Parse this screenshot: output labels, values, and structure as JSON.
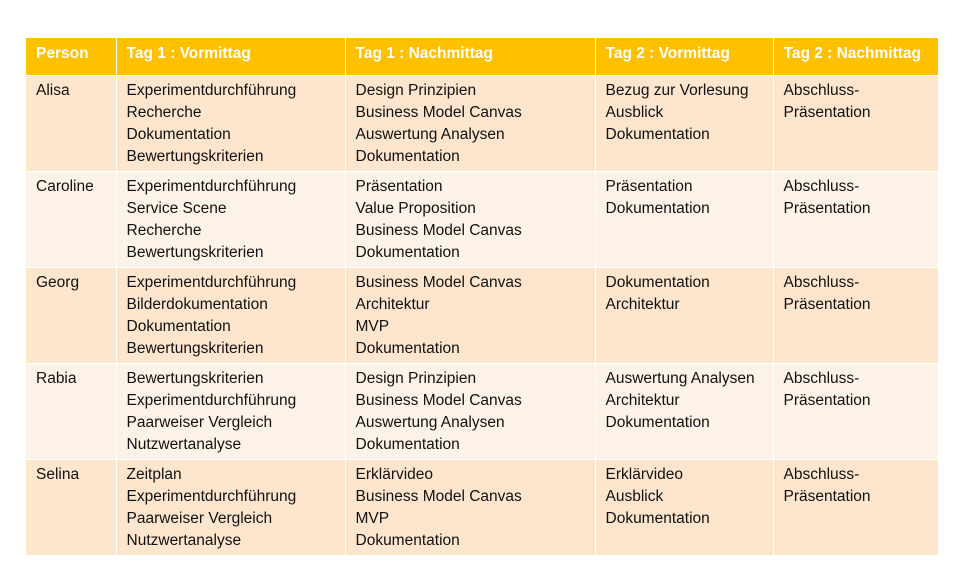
{
  "table": {
    "headers": [
      "Person",
      "Tag 1 : Vormittag",
      "Tag 1 : Nachmittag",
      "Tag 2 : Vormittag",
      "Tag 2 : Nachmittag"
    ],
    "rows": [
      {
        "person": "Alisa",
        "tag1_vormittag": [
          "Experimentdurchführung",
          "Recherche",
          "Dokumentation",
          "Bewertungskriterien"
        ],
        "tag1_nachmittag": [
          "Design Prinzipien",
          "Business Model Canvas",
          "Auswertung Analysen",
          "Dokumentation"
        ],
        "tag2_vormittag": [
          "Bezug zur Vorlesung",
          "Ausblick",
          "Dokumentation"
        ],
        "tag2_nachmittag": "Abschluss-\nPräsentation"
      },
      {
        "person": "Caroline",
        "tag1_vormittag": [
          "Experimentdurchführung",
          "Service Scene",
          "Recherche",
          "Bewertungskriterien"
        ],
        "tag1_nachmittag": [
          "Präsentation",
          "Value Proposition",
          "Business Model Canvas",
          "Dokumentation"
        ],
        "tag2_vormittag": [
          "Präsentation",
          "Dokumentation"
        ],
        "tag2_nachmittag": "Abschluss-\nPräsentation"
      },
      {
        "person": "Georg",
        "tag1_vormittag": [
          "Experimentdurchführung",
          "Bilderdokumentation",
          "Dokumentation",
          "Bewertungskriterien"
        ],
        "tag1_nachmittag": [
          "Business Model Canvas",
          "Architektur",
          "MVP",
          "Dokumentation"
        ],
        "tag2_vormittag": [
          "Dokumentation",
          "Architektur"
        ],
        "tag2_nachmittag": "Abschluss-\nPräsentation"
      },
      {
        "person": "Rabia",
        "tag1_vormittag": [
          "Bewertungskriterien",
          "Experimentdurchführung",
          "Paarweiser Vergleich",
          "Nutzwertanalyse"
        ],
        "tag1_nachmittag": [
          "Design Prinzipien",
          "Business Model Canvas",
          "Auswertung Analysen",
          "Dokumentation"
        ],
        "tag2_vormittag": [
          "Auswertung Analysen",
          "Architektur",
          "Dokumentation"
        ],
        "tag2_nachmittag": "Abschluss-\nPräsentation"
      },
      {
        "person": "Selina",
        "tag1_vormittag": [
          "Zeitplan",
          "Experimentdurchführung",
          "Paarweiser Vergleich",
          "Nutzwertanalyse"
        ],
        "tag1_nachmittag": [
          "Erklärvideo",
          "Business Model Canvas",
          "MVP",
          "Dokumentation"
        ],
        "tag2_vormittag": [
          "Erklärvideo",
          "Ausblick",
          "Dokumentation"
        ],
        "tag2_nachmittag": "Abschluss-\nPräsentation"
      }
    ]
  },
  "colors": {
    "header_bg": "#ffc000",
    "header_text": "#ffffff",
    "row_odd_bg": "#fde6cd",
    "row_even_bg": "#fdf2e7"
  }
}
